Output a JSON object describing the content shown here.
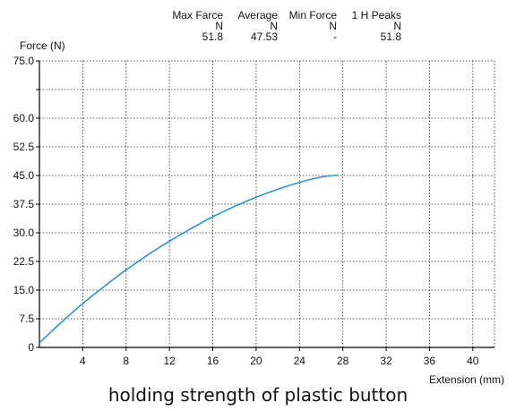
{
  "caption": "holding strength of plastic button",
  "stats": {
    "columns": [
      {
        "header": "Max Farce",
        "unit": "N",
        "value": "51.8"
      },
      {
        "header": "Average",
        "unit": "N",
        "value": "47.53"
      },
      {
        "header": "Min Force",
        "unit": "N",
        "value": "-"
      },
      {
        "header": "1 H Peaks",
        "unit": "N",
        "value": "51.8"
      }
    ]
  },
  "chart_data": {
    "type": "line",
    "ylabel": "Force (N)",
    "xlabel": "Extension (mm)",
    "xlim": [
      0,
      42
    ],
    "ylim": [
      0,
      75
    ],
    "x_ticks": [
      4,
      8,
      12,
      16,
      20,
      24,
      28,
      32,
      36,
      40
    ],
    "x_tick_labels": [
      "4",
      "8",
      "12",
      "16",
      "20",
      "24",
      "28",
      "32",
      "36",
      "40"
    ],
    "y_ticks": [
      0,
      7.5,
      15,
      22.5,
      30,
      37.5,
      45,
      52.5,
      60,
      67.5,
      75
    ],
    "y_tick_labels": [
      "0",
      "7.5",
      "15.0",
      "22.5",
      "30.0",
      "37.5",
      "45.0",
      "52.5",
      "60.0",
      "",
      "75.0"
    ],
    "grid": true,
    "series": [
      {
        "color": "#1f8fcf",
        "x": [
          0,
          2,
          4,
          6,
          8,
          10,
          12,
          14,
          16,
          18,
          20,
          22,
          24,
          26,
          27.5
        ],
        "y": [
          1.2,
          6.5,
          11.5,
          16.0,
          20.3,
          24.2,
          27.8,
          31.1,
          34.2,
          36.9,
          39.3,
          41.4,
          43.2,
          44.6,
          45.1
        ]
      }
    ]
  }
}
